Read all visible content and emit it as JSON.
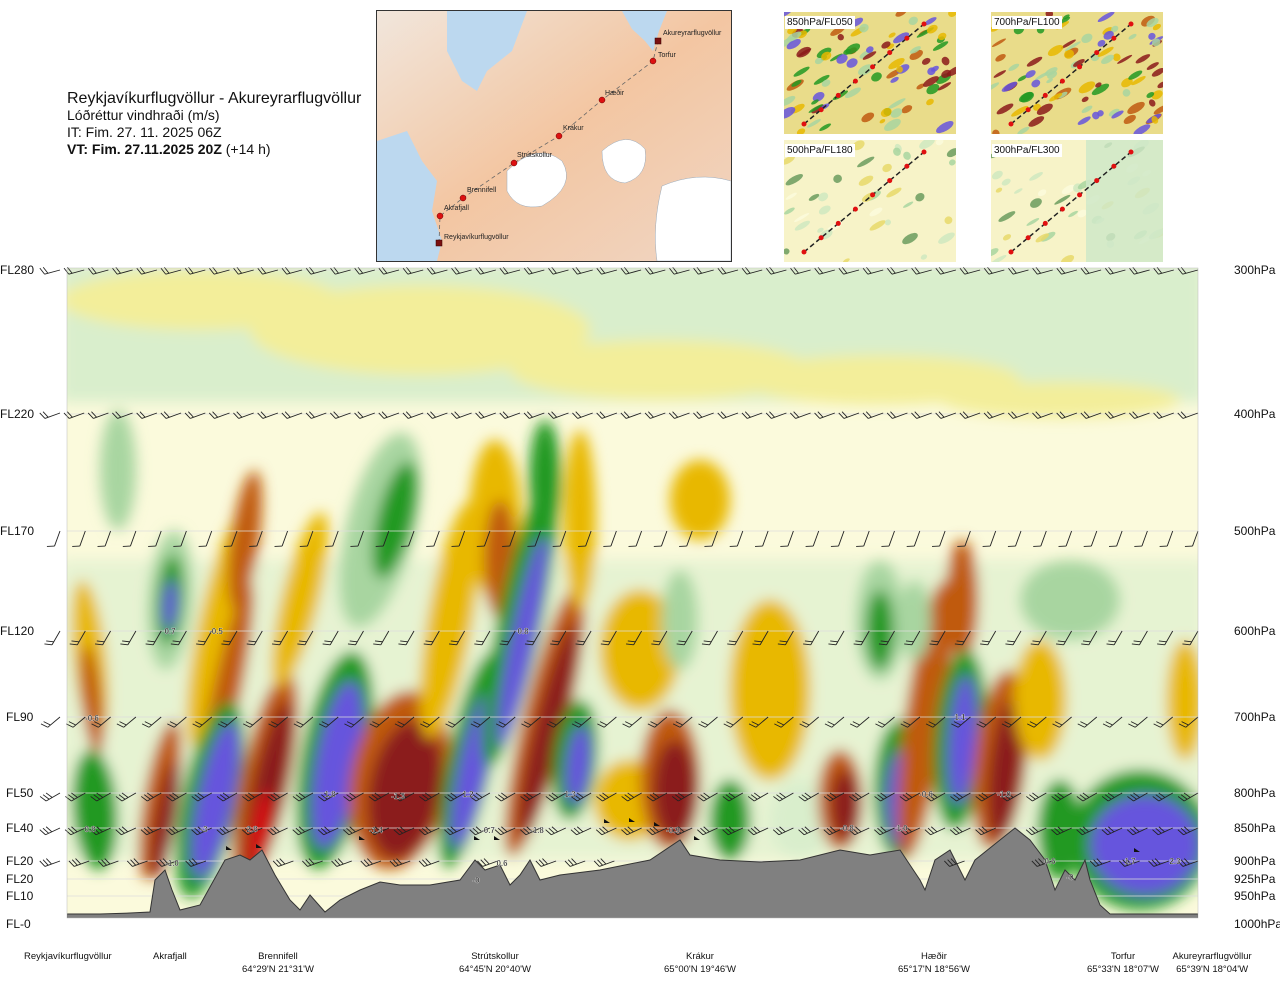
{
  "header": {
    "route": "Reykjavíkurflugvöllur - Akureyrarflugvöllur",
    "variable": "Lóðréttur vindhraði (m/s)",
    "issue_time": "IT: Fim. 27. 11. 2025 06Z",
    "valid_prefix": "VT: Fim. 27.11.2025 20Z",
    "valid_suffix": "(+14 h)"
  },
  "map": {
    "points": [
      {
        "name": "Akureyrarflugvöllur",
        "kind": "airport"
      },
      {
        "name": "Torfur",
        "kind": "point"
      },
      {
        "name": "Hæðir",
        "kind": "point"
      },
      {
        "name": "Krákur",
        "kind": "point"
      },
      {
        "name": "Strútskollur",
        "kind": "point"
      },
      {
        "name": "Brennifell",
        "kind": "point"
      },
      {
        "name": "Akrafjall",
        "kind": "point"
      },
      {
        "name": "Reykjavíkurflugvöllur",
        "kind": "airport"
      }
    ]
  },
  "thumbnails": [
    {
      "label": "850hPa/FL050"
    },
    {
      "label": "700hPa/FL100"
    },
    {
      "label": "500hPa/FL180"
    },
    {
      "label": "300hPa/FL300"
    }
  ],
  "levels": [
    {
      "fl": "FL280",
      "hpa": "300hPa"
    },
    {
      "fl": "FL220",
      "hpa": "400hPa"
    },
    {
      "fl": "FL170",
      "hpa": "500hPa"
    },
    {
      "fl": "FL120",
      "hpa": "600hPa"
    },
    {
      "fl": "FL90",
      "hpa": "700hPa"
    },
    {
      "fl": "FL50",
      "hpa": "800hPa"
    },
    {
      "fl": "FL40",
      "hpa": "850hPa"
    },
    {
      "fl": "FL20",
      "hpa": "900hPa"
    },
    {
      "fl": "FL20",
      "hpa": "925hPa"
    },
    {
      "fl": "FL10",
      "hpa": "950hPa"
    },
    {
      "fl": "FL-0",
      "hpa": "1000hPa"
    }
  ],
  "waypoints": [
    {
      "name": "Reykjavíkurflugvöllur",
      "coord": ""
    },
    {
      "name": "Akrafjall",
      "coord": ""
    },
    {
      "name": "Brennifell",
      "coord": "64°29'N 21°31'W"
    },
    {
      "name": "Strútskollur",
      "coord": "64°45'N 20°40'W"
    },
    {
      "name": "Krákur",
      "coord": "65°00'N 19°46'W"
    },
    {
      "name": "Hæðir",
      "coord": "65°17'N 18°56'W"
    },
    {
      "name": "Torfur",
      "coord": "65°33'N 18°07'W"
    },
    {
      "name": "Akureyrarflugvöllur",
      "coord": "65°39'N 18°04'W"
    }
  ],
  "colors": {
    "strong_down": "#8b1a1a",
    "down": "#c05a10",
    "weak_down": "#e8b800",
    "slight_down": "#f3ee9a",
    "neutral": "#fbfadc",
    "slight_up": "#d9eecc",
    "weak_up": "#a8d5a0",
    "up": "#229922",
    "strong_up": "#6655dd",
    "terrain": "#808080"
  },
  "chart_data": {
    "type": "heatmap",
    "title": "Lóðréttur vindhraði (m/s)",
    "x_axis": "distance along route (Reykjavíkurflugvöllur → Akureyrarflugvöllur)",
    "y_axis": "pressure level (hPa) / flight level",
    "ylim": [
      1000,
      300
    ],
    "value_labels": [
      {
        "value": "0.8",
        "level_hpa": 850,
        "near": "Reykjavíkurflugvöllur"
      },
      {
        "value": "-0.6",
        "level_hpa": 700,
        "near": "Reykjavíkurflugvöllur"
      },
      {
        "value": "0.7",
        "level_hpa": 600,
        "near": "Akrafjall"
      },
      {
        "value": "-0.5",
        "level_hpa": 600,
        "near": "Akrafjall"
      },
      {
        "value": "-1.0",
        "level_hpa": 900,
        "near": "Akrafjall"
      },
      {
        "value": "-3",
        "level_hpa": 850,
        "near": "Brennifell"
      },
      {
        "value": "2.8",
        "level_hpa": 850,
        "near": "Brennifell"
      },
      {
        "value": "1.8",
        "level_hpa": 800,
        "near": "Brennifell"
      },
      {
        "value": "-1.3",
        "level_hpa": 800,
        "near": "Brennifell"
      },
      {
        "value": "-1.4",
        "level_hpa": 850,
        "near": "Brennifell"
      },
      {
        "value": "1.2",
        "level_hpa": 800,
        "near": "Strútskollur"
      },
      {
        "value": "-0.7",
        "level_hpa": 850,
        "near": "Strútskollur"
      },
      {
        "value": "-1.8",
        "level_hpa": 850,
        "near": "Strútskollur"
      },
      {
        "value": "0.8",
        "level_hpa": 600,
        "near": "Strútskollur"
      },
      {
        "value": "0.6",
        "level_hpa": 900,
        "near": "Strútskollur"
      },
      {
        "value": "-0",
        "level_hpa": 925,
        "near": "Strútskollur"
      },
      {
        "value": "1.3",
        "level_hpa": 800,
        "near": "Strútskollur"
      },
      {
        "value": "-0.9",
        "level_hpa": 850,
        "near": "Krákur"
      },
      {
        "value": "-0.8",
        "level_hpa": 850,
        "near": "Hæðir"
      },
      {
        "value": "1.0",
        "level_hpa": 850,
        "near": "Hæðir"
      },
      {
        "value": "-0.6",
        "level_hpa": 800,
        "near": "Hæðir"
      },
      {
        "value": "1.1",
        "level_hpa": 700,
        "near": "Hæðir"
      },
      {
        "value": "-1.0",
        "level_hpa": 800,
        "near": "Hæðir"
      },
      {
        "value": "0.6",
        "level_hpa": 900,
        "near": "Torfur"
      },
      {
        "value": "-0",
        "level_hpa": 925,
        "near": "Torfur"
      },
      {
        "value": "1.7",
        "level_hpa": 900,
        "near": "Akureyrarflugvöllur"
      },
      {
        "value": "2.3",
        "level_hpa": 900,
        "near": "Akureyrarflugvöllur"
      }
    ]
  }
}
